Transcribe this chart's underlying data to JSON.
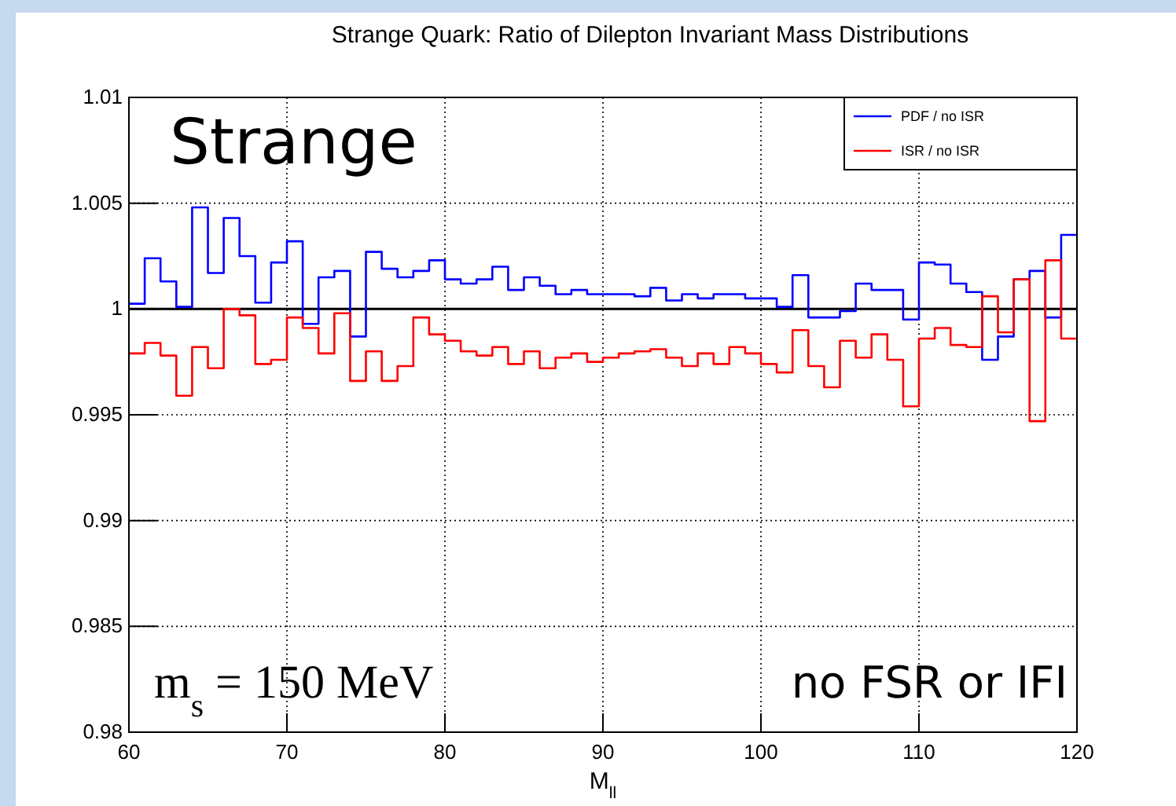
{
  "chart_data": {
    "type": "histogram",
    "title": "Strange Quark: Ratio of Dilepton Invariant Mass Distributions",
    "xlabel": "M$_{ll}$",
    "bins": [
      60,
      61,
      62,
      63,
      64,
      65,
      66,
      67,
      68,
      69,
      70,
      71,
      72,
      73,
      74,
      75,
      76,
      77,
      78,
      79,
      80,
      81,
      82,
      83,
      84,
      85,
      86,
      87,
      88,
      89,
      90,
      91,
      92,
      93,
      94,
      95,
      96,
      97,
      98,
      99,
      100,
      101,
      102,
      103,
      104,
      105,
      106,
      107,
      108,
      109,
      110,
      111,
      112,
      113,
      114,
      115,
      116,
      117,
      118,
      119,
      120
    ],
    "series": [
      {
        "name": "PDF / no ISR",
        "color": "#0000ff",
        "values": [
          1.00025,
          1.0024,
          1.0013,
          1.0001,
          1.0048,
          1.0017,
          1.0043,
          1.0025,
          1.0003,
          1.0022,
          1.0032,
          0.9993,
          1.0015,
          1.0018,
          0.9987,
          1.0027,
          1.0019,
          1.0015,
          1.0018,
          1.0023,
          1.0014,
          1.0012,
          1.0014,
          1.002,
          1.0009,
          1.0015,
          1.0011,
          1.0007,
          1.0009,
          1.0007,
          1.0007,
          1.0007,
          1.0006,
          1.001,
          1.0004,
          1.0007,
          1.0005,
          1.0007,
          1.0007,
          1.0005,
          1.0005,
          1.0001,
          1.0016,
          0.9996,
          0.9996,
          0.9999,
          1.0012,
          1.0009,
          1.0009,
          0.9995,
          1.0022,
          1.0021,
          1.0012,
          1.0008,
          0.9976,
          0.9987,
          1.0014,
          1.0018,
          0.9996,
          1.0035
        ]
      },
      {
        "name": "ISR / no ISR",
        "color": "#ff0000",
        "values": [
          0.9979,
          0.9984,
          0.9978,
          0.9959,
          0.9982,
          0.9972,
          1.0,
          0.9997,
          0.9974,
          0.9976,
          0.9996,
          0.9991,
          0.9979,
          0.9998,
          0.9966,
          0.998,
          0.9966,
          0.9973,
          0.9996,
          0.9988,
          0.9985,
          0.998,
          0.9978,
          0.9982,
          0.9974,
          0.998,
          0.9972,
          0.9977,
          0.9979,
          0.9975,
          0.9977,
          0.9979,
          0.998,
          0.9981,
          0.9977,
          0.9973,
          0.9979,
          0.9974,
          0.9982,
          0.9979,
          0.9974,
          0.997,
          0.999,
          0.9973,
          0.9963,
          0.9985,
          0.9977,
          0.9988,
          0.9976,
          0.9954,
          0.9986,
          0.9991,
          0.9983,
          0.9982,
          1.0006,
          0.9989,
          1.0014,
          0.9947,
          1.0023,
          0.9986
        ]
      }
    ],
    "xlim": [
      60,
      120
    ],
    "xticks": [
      60,
      70,
      80,
      90,
      100,
      110,
      120
    ],
    "ylim": [
      0.98,
      1.01
    ],
    "yticks": [
      0.98,
      0.985,
      0.99,
      0.995,
      1,
      1.005,
      1.01
    ],
    "ref_lines": [
      {
        "axis": "y",
        "value": 1,
        "color": "#000000"
      }
    ],
    "grid": true,
    "legend": "top right",
    "annotations": [
      "Strange",
      "m$_{s}$ = 150 MeV",
      "no FSR or IFI"
    ]
  }
}
